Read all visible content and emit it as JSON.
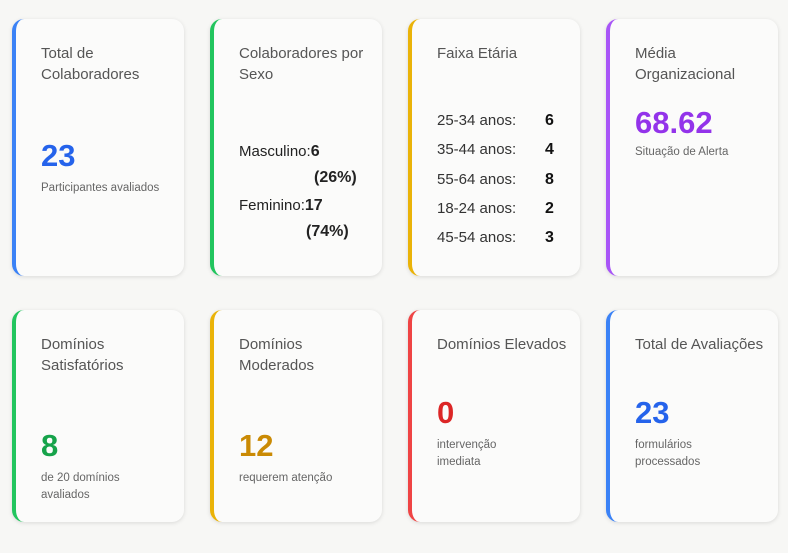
{
  "colors": {
    "blue": "#2563eb",
    "green": "#16a34a",
    "amber": "#ca8a04",
    "red": "#dc2626",
    "purple": "#9333ea"
  },
  "cards": {
    "total_colaboradores": {
      "title": "Total de Colaboradores",
      "value": "23",
      "subtitle": "Participantes avaliados"
    },
    "sexo": {
      "title": "Colaboradores por Sexo",
      "masculino_label": "Masculino:",
      "masculino_value": "6",
      "masculino_pct": "(26%)",
      "feminino_label": "Feminino:",
      "feminino_value": "17",
      "feminino_pct": "(74%)"
    },
    "faixa_etaria": {
      "title": "Faixa Etária",
      "rows": [
        {
          "label": "25-34 anos:",
          "value": "6"
        },
        {
          "label": "35-44 anos:",
          "value": "4"
        },
        {
          "label": "55-64 anos:",
          "value": "8"
        },
        {
          "label": "18-24 anos:",
          "value": "2"
        },
        {
          "label": "45-54 anos:",
          "value": "3"
        }
      ]
    },
    "media": {
      "title": "Média Organizacional",
      "value": "68.62",
      "subtitle": "Situação de Alerta"
    },
    "satisfatorios": {
      "title": "Domínios Satisfatórios",
      "value": "8",
      "subtitle": "de 20 domínios avaliados"
    },
    "moderados": {
      "title": "Domínios Moderados",
      "value": "12",
      "subtitle": "requerem atenção"
    },
    "elevados": {
      "title": "Domínios Elevados",
      "value": "0",
      "subtitle": "intervenção imediata"
    },
    "avaliacoes": {
      "title": "Total de Avaliações",
      "value": "23",
      "subtitle": "formulários processados"
    }
  }
}
